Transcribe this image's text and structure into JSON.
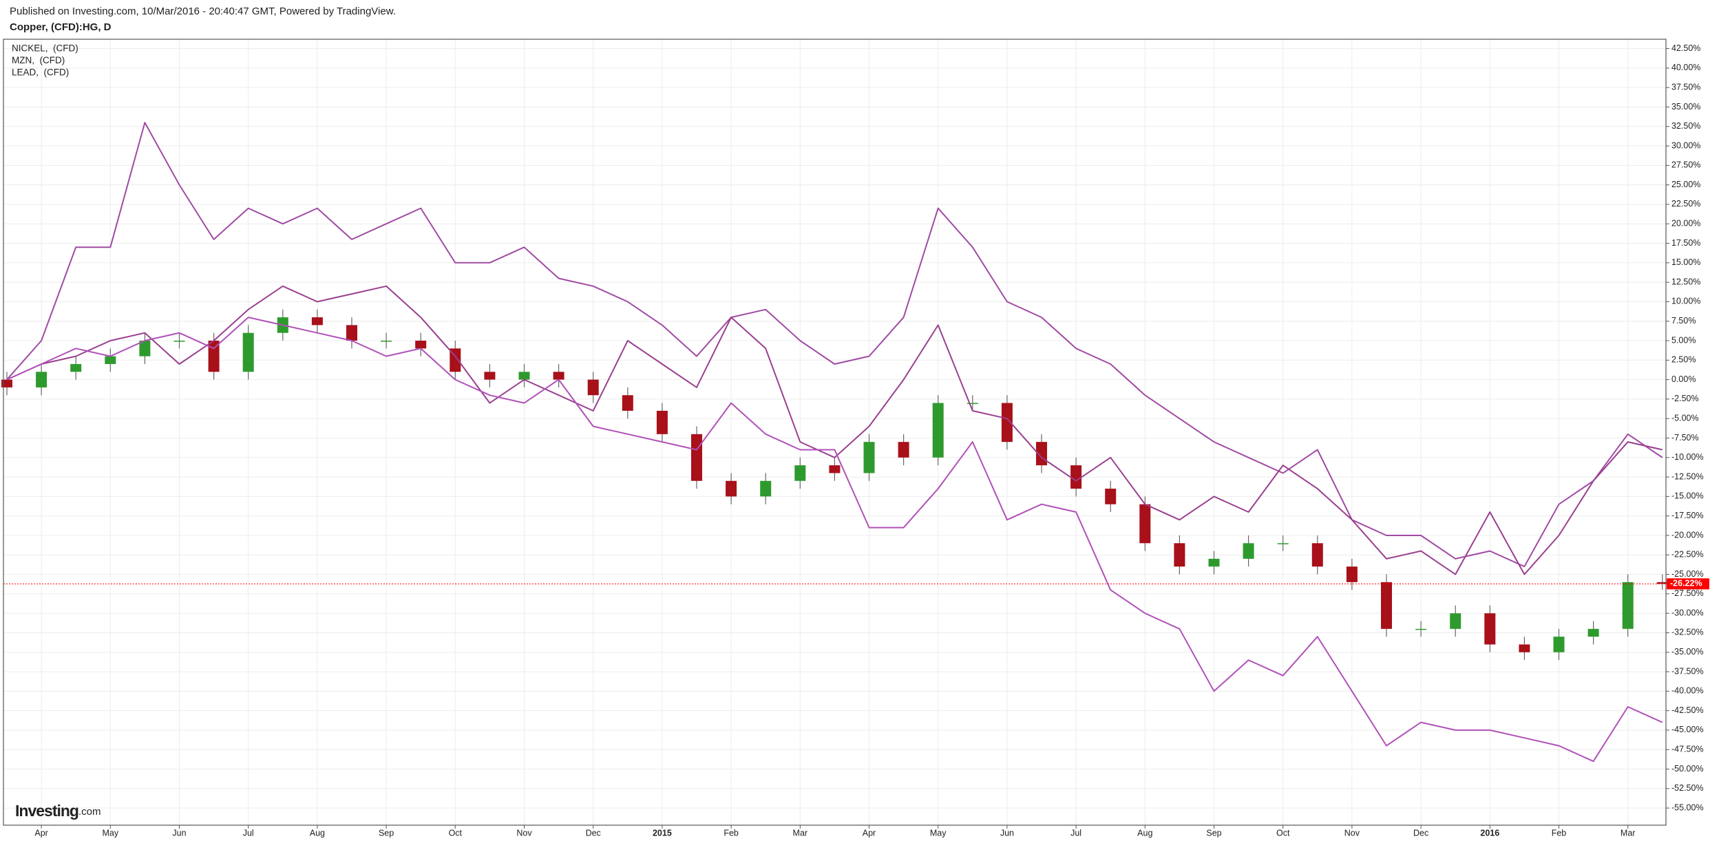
{
  "chart_data": {
    "type": "candlestick",
    "subtitle": "Published on Investing.com, 10/Mar/2016 - 20:40:47 GMT, Powered by TradingView.",
    "title": "Copper, (CFD):HG, D",
    "categories": [
      null,
      "Apr",
      null,
      "May",
      null,
      "Jun",
      null,
      "Jul",
      null,
      "Aug",
      null,
      "Sep",
      null,
      "Oct",
      null,
      "Nov",
      null,
      "Dec",
      null,
      "2015",
      null,
      "Feb",
      null,
      "Mar",
      null,
      "Apr",
      null,
      "May",
      null,
      "Jun",
      null,
      "Jul",
      null,
      "Aug",
      null,
      "Sep",
      null,
      "Oct",
      null,
      "Nov",
      null,
      "Dec",
      null,
      "2016",
      null,
      "Feb",
      null,
      "Mar",
      null
    ],
    "open": [
      0,
      -1,
      1,
      2,
      3,
      5,
      5,
      1,
      6,
      8,
      7,
      5,
      5,
      4,
      1,
      0,
      1,
      0,
      -2,
      -4,
      -7,
      -13,
      -15,
      -13,
      -11,
      -12,
      -8,
      -10,
      -3,
      -3,
      -8,
      -11,
      -14,
      -16,
      -21,
      -24,
      -23,
      -21,
      -21,
      -24,
      -26,
      -32,
      -32,
      -30,
      -34,
      -35,
      -33,
      -32,
      -26
    ],
    "high": [
      1,
      2,
      3,
      4,
      6,
      6,
      6,
      7,
      9,
      9,
      8,
      6,
      6,
      5,
      2,
      2,
      2,
      1,
      -1,
      -3,
      -6,
      -12,
      -12,
      -10,
      -10,
      -7,
      -7,
      -2,
      -2,
      -2,
      -7,
      -10,
      -13,
      -15,
      -20,
      -22,
      -20,
      -20,
      -20,
      -23,
      -25,
      -31,
      -29,
      -29,
      -33,
      -32,
      -31,
      -25,
      -25
    ],
    "low": [
      -2,
      -2,
      0,
      1,
      2,
      4,
      0,
      0,
      5,
      6,
      4,
      4,
      3,
      0,
      -1,
      -1,
      -1,
      -3,
      -5,
      -8,
      -14,
      -16,
      -16,
      -14,
      -13,
      -13,
      -11,
      -11,
      -4,
      -9,
      -12,
      -15,
      -17,
      -22,
      -25,
      -25,
      -24,
      -22,
      -25,
      -27,
      -33,
      -33,
      -33,
      -35,
      -36,
      -36,
      -34,
      -33,
      -27
    ],
    "close": [
      -1,
      1,
      2,
      3,
      5,
      5,
      1,
      6,
      8,
      7,
      5,
      5,
      4,
      1,
      0,
      1,
      0,
      -2,
      -4,
      -7,
      -13,
      -15,
      -13,
      -11,
      -12,
      -8,
      -10,
      -3,
      -3,
      -8,
      -11,
      -14,
      -16,
      -21,
      -24,
      -23,
      -21,
      -21,
      -24,
      -26,
      -32,
      -32,
      -30,
      -34,
      -35,
      -33,
      -32,
      -26,
      -26.22
    ],
    "up_color": "#2e9a2e",
    "down_color": "#a8101a",
    "series": [
      {
        "name": "NICKEL,  (CFD)",
        "color": "#a04aa3",
        "values": [
          0,
          5,
          17,
          17,
          33,
          25,
          18,
          22,
          20,
          22,
          18,
          20,
          22,
          15,
          15,
          17,
          13,
          12,
          10,
          7,
          3,
          8,
          9,
          5,
          2,
          3,
          8,
          22,
          17,
          10,
          8,
          4,
          2,
          -2,
          -5,
          -8,
          -10,
          -12,
          -9,
          -18,
          -20,
          -20,
          -23,
          -22,
          -24,
          -16,
          -13,
          -7,
          -10
        ]
      },
      {
        "name": "MZN,  (CFD)",
        "color": "#9a3f8e",
        "values": [
          0,
          2,
          3,
          5,
          6,
          2,
          5,
          9,
          12,
          10,
          11,
          12,
          8,
          3,
          -3,
          0,
          -2,
          -4,
          5,
          2,
          -1,
          8,
          4,
          -8,
          -10,
          -6,
          0,
          7,
          -4,
          -5,
          -10,
          -13,
          -10,
          -16,
          -18,
          -15,
          -17,
          -11,
          -14,
          -18,
          -23,
          -22,
          -25,
          -17,
          -25,
          -20,
          -13,
          -8,
          -9
        ]
      },
      {
        "name": "LEAD,  (CFD)",
        "color": "#b050b8",
        "values": [
          0,
          2,
          4,
          3,
          5,
          6,
          4,
          8,
          7,
          6,
          5,
          3,
          4,
          0,
          -2,
          -3,
          0,
          -6,
          -7,
          -8,
          -9,
          -3,
          -7,
          -9,
          -9,
          -19,
          -19,
          -14,
          -8,
          -18,
          -16,
          -17,
          -27,
          -30,
          -32,
          -40,
          -36,
          -38,
          -33,
          -40,
          -47,
          -44,
          -45,
          -45,
          -46,
          -47,
          -49,
          -42,
          -44
        ]
      }
    ],
    "ylim": [
      -57.2,
      43.7
    ],
    "yticks": [
      {
        "value": 42.5,
        "label": "42.50%"
      },
      {
        "value": 40,
        "label": "40.00%"
      },
      {
        "value": 37.5,
        "label": "37.50%"
      },
      {
        "value": 35,
        "label": "35.00%"
      },
      {
        "value": 32.5,
        "label": "32.50%"
      },
      {
        "value": 30,
        "label": "30.00%"
      },
      {
        "value": 27.5,
        "label": "27.50%"
      },
      {
        "value": 25,
        "label": "25.00%"
      },
      {
        "value": 22.5,
        "label": "22.50%"
      },
      {
        "value": 20,
        "label": "20.00%"
      },
      {
        "value": 17.5,
        "label": "17.50%"
      },
      {
        "value": 15,
        "label": "15.00%"
      },
      {
        "value": 12.5,
        "label": "12.50%"
      },
      {
        "value": 10,
        "label": "10.00%"
      },
      {
        "value": 7.5,
        "label": "7.50%"
      },
      {
        "value": 5,
        "label": "5.00%"
      },
      {
        "value": 2.5,
        "label": "2.50%"
      },
      {
        "value": 0,
        "label": "0.00%"
      },
      {
        "value": -2.5,
        "label": "-2.50%"
      },
      {
        "value": -5,
        "label": "-5.00%"
      },
      {
        "value": -7.5,
        "label": "-7.50%"
      },
      {
        "value": -10,
        "label": "-10.00%"
      },
      {
        "value": -12.5,
        "label": "-12.50%"
      },
      {
        "value": -15,
        "label": "-15.00%"
      },
      {
        "value": -17.5,
        "label": "-17.50%"
      },
      {
        "value": -20,
        "label": "-20.00%"
      },
      {
        "value": -22.5,
        "label": "-22.50%"
      },
      {
        "value": -25,
        "label": "-25.00%"
      },
      {
        "value": -27.5,
        "label": "-27.50%"
      },
      {
        "value": -30,
        "label": "-30.00%"
      },
      {
        "value": -32.5,
        "label": "-32.50%"
      },
      {
        "value": -35,
        "label": "-35.00%"
      },
      {
        "value": -37.5,
        "label": "-37.50%"
      },
      {
        "value": -40,
        "label": "-40.00%"
      },
      {
        "value": -42.5,
        "label": "-42.50%"
      },
      {
        "value": -45,
        "label": "-45.00%"
      },
      {
        "value": -47.5,
        "label": "-47.50%"
      },
      {
        "value": -50,
        "label": "-50.00%"
      },
      {
        "value": -52.5,
        "label": "-52.50%"
      },
      {
        "value": -55,
        "label": "-55.00%"
      }
    ],
    "grid": true,
    "legend": "top-left",
    "last_value": {
      "value": -26.22,
      "label": "-26.22%",
      "color": "#ff0000"
    },
    "watermark": {
      "brand": "Investing",
      "suffix": ".com"
    }
  }
}
